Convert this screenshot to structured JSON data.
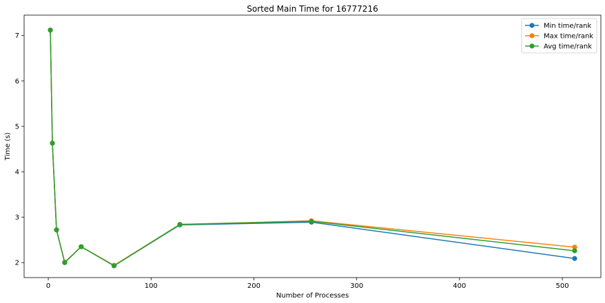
{
  "chart_data": {
    "type": "line",
    "title": "Sorted Main Time for 16777216",
    "xlabel": "Number of Processes",
    "ylabel": "Time (s)",
    "xlim": [
      -23.5,
      537.5
    ],
    "ylim": [
      1.67,
      7.45
    ],
    "xticks": [
      0,
      100,
      200,
      300,
      400,
      500
    ],
    "yticks": [
      2,
      3,
      4,
      5,
      6,
      7
    ],
    "grid": false,
    "legend_position": "top-right",
    "x": [
      2,
      4,
      8,
      16,
      32,
      64,
      128,
      256,
      512
    ],
    "series": [
      {
        "name": "Min time/rank",
        "color": "#1f77b4",
        "values": [
          7.12,
          4.63,
          2.72,
          2.0,
          2.35,
          1.93,
          2.83,
          2.89,
          2.09
        ]
      },
      {
        "name": "Max time/rank",
        "color": "#ff7f0e",
        "values": [
          7.12,
          4.63,
          2.72,
          2.01,
          2.35,
          1.94,
          2.84,
          2.92,
          2.34
        ]
      },
      {
        "name": "Avg time/rank",
        "color": "#2ca02c",
        "values": [
          7.12,
          4.63,
          2.72,
          2.0,
          2.35,
          1.93,
          2.84,
          2.91,
          2.26
        ]
      }
    ]
  }
}
